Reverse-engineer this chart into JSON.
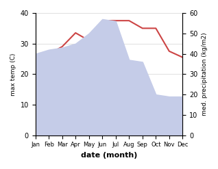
{
  "months": [
    "Jan",
    "Feb",
    "Mar",
    "Apr",
    "May",
    "Jun",
    "Jul",
    "Aug",
    "Sep",
    "Oct",
    "Nov",
    "Dec"
  ],
  "temp": [
    25.5,
    26.5,
    29.0,
    33.5,
    31.0,
    37.5,
    37.5,
    37.5,
    35.0,
    35.0,
    27.5,
    25.5
  ],
  "precip": [
    40,
    42,
    43,
    45,
    50,
    57,
    56,
    37,
    36,
    20,
    19,
    19
  ],
  "temp_color": "#cc4444",
  "precip_fill_color": "#c5cce8",
  "temp_ylim": [
    0,
    40
  ],
  "precip_ylim": [
    0,
    60
  ],
  "temp_ylabel": "max temp (C)",
  "precip_ylabel": "med. precipitation (kg/m2)",
  "xlabel": "date (month)",
  "temp_yticks": [
    0,
    10,
    20,
    30,
    40
  ],
  "precip_yticks": [
    0,
    10,
    20,
    30,
    40,
    50,
    60
  ],
  "background_color": "#ffffff"
}
